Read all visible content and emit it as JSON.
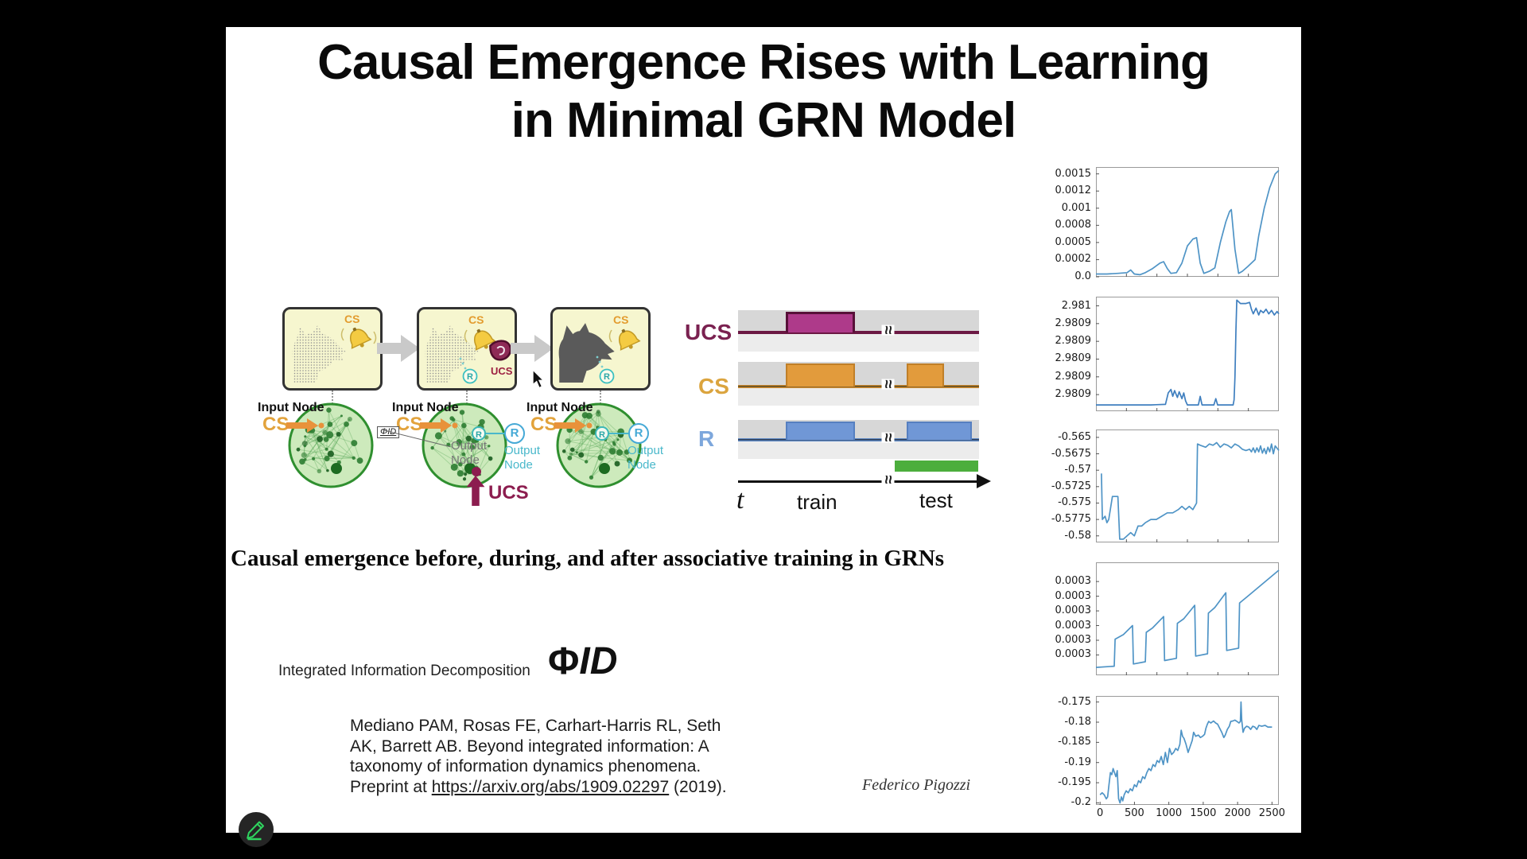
{
  "slide": {
    "title_line1": "Causal Emergence Rises with Learning",
    "title_line2": "in Minimal GRN Model",
    "caption": "Causal emergence before, during, and after associative training in GRNs",
    "author": "Federico Pigozzi"
  },
  "conditioning_panels": {
    "cs_label": "CS",
    "ucs_label": "UCS",
    "r_label": "R"
  },
  "networks": {
    "input_node_label": "Input Node",
    "cs_label": "CS",
    "output_node_line1": "Output",
    "output_node_line2": "Node",
    "ucs_label": "UCS",
    "r_label": "R",
    "phiid_badge": "ΦID"
  },
  "timing_diagram": {
    "ucs_label": "UCS",
    "cs_label": "CS",
    "r_label": "R",
    "t_label": "t",
    "train_label": "train",
    "test_label": "test",
    "break_symbol": "≈"
  },
  "phi_section": {
    "label": "Integrated Information Decomposition",
    "symbol_phi": "Φ",
    "symbol_id": "ID"
  },
  "citation": {
    "line1": "Mediano PAM, Rosas FE, Carhart-Harris RL, Seth",
    "line2": "AK, Barrett AB. Beyond integrated information: A",
    "line3": "taxonomy of information dynamics phenomena.",
    "line4_prefix": "Preprint at ",
    "line4_link": "https://arxiv.org/abs/1909.02297",
    "line4_suffix": " (2019)."
  },
  "colors": {
    "cs_orange": "#e2a33c",
    "ucs_maroon": "#8c1d4f",
    "response_blue": "#7da7dc",
    "network_green": "#2f8f2f",
    "chart_line_blue": "#4f94c6",
    "test_bar_green": "#4cae3d",
    "pencil_green": "#2fd45f"
  },
  "chart_data": [
    {
      "type": "line",
      "line_color": "#4f94c6",
      "xlim": [
        0,
        1
      ],
      "ylim": [
        0,
        0.0016
      ],
      "yticks": {
        "labels": [
          "0.0015",
          "0.0012",
          "0.001",
          "0.0008",
          "0.0005",
          "0.0002",
          "0.0"
        ],
        "values": [
          0.0015,
          0.00125,
          0.001,
          0.00075,
          0.0005,
          0.00025,
          0
        ]
      },
      "points": [
        [
          0,
          4e-05
        ],
        [
          0.06,
          4e-05
        ],
        [
          0.12,
          5e-05
        ],
        [
          0.17,
          6e-05
        ],
        [
          0.19,
          0.0001
        ],
        [
          0.21,
          4e-05
        ],
        [
          0.24,
          3e-05
        ],
        [
          0.27,
          6e-05
        ],
        [
          0.31,
          0.00012
        ],
        [
          0.35,
          0.0002
        ],
        [
          0.37,
          0.00022
        ],
        [
          0.39,
          0.00012
        ],
        [
          0.41,
          5e-05
        ],
        [
          0.44,
          6e-05
        ],
        [
          0.47,
          0.0002
        ],
        [
          0.5,
          0.00045
        ],
        [
          0.53,
          0.00055
        ],
        [
          0.55,
          0.00057
        ],
        [
          0.57,
          0.0002
        ],
        [
          0.59,
          5e-05
        ],
        [
          0.62,
          8e-05
        ],
        [
          0.65,
          0.00013
        ],
        [
          0.68,
          0.0005
        ],
        [
          0.71,
          0.0008
        ],
        [
          0.73,
          0.00095
        ],
        [
          0.74,
          0.00098
        ],
        [
          0.76,
          0.0004
        ],
        [
          0.78,
          5e-05
        ],
        [
          0.8,
          8e-05
        ],
        [
          0.83,
          0.00015
        ],
        [
          0.85,
          0.0002
        ],
        [
          0.87,
          0.00025
        ],
        [
          0.89,
          0.0006
        ],
        [
          0.92,
          0.001
        ],
        [
          0.95,
          0.0013
        ],
        [
          0.98,
          0.0015
        ],
        [
          1,
          0.00155
        ]
      ]
    },
    {
      "type": "line",
      "line_color": "#3f7fbf",
      "xlim": [
        0,
        1
      ],
      "ylim": [
        0,
        1
      ],
      "yticks": {
        "labels": [
          "2.981",
          "2.9809",
          "2.9809",
          "2.9809",
          "2.9809",
          "2.9809"
        ],
        "values": [
          0.92,
          0.765,
          0.61,
          0.455,
          0.3,
          0.145
        ]
      },
      "points": [
        [
          0,
          0.055
        ],
        [
          0.3,
          0.055
        ],
        [
          0.33,
          0.057
        ],
        [
          0.38,
          0.06
        ],
        [
          0.395,
          0.16
        ],
        [
          0.41,
          0.19
        ],
        [
          0.42,
          0.13
        ],
        [
          0.43,
          0.18
        ],
        [
          0.445,
          0.12
        ],
        [
          0.455,
          0.17
        ],
        [
          0.47,
          0.11
        ],
        [
          0.48,
          0.16
        ],
        [
          0.49,
          0.09
        ],
        [
          0.5,
          0.055
        ],
        [
          0.56,
          0.055
        ],
        [
          0.57,
          0.13
        ],
        [
          0.58,
          0.055
        ],
        [
          0.645,
          0.055
        ],
        [
          0.655,
          0.11
        ],
        [
          0.665,
          0.055
        ],
        [
          0.75,
          0.055
        ],
        [
          0.755,
          0.1
        ],
        [
          0.76,
          0.3
        ],
        [
          0.765,
          0.7
        ],
        [
          0.77,
          0.97
        ],
        [
          0.79,
          0.94
        ],
        [
          0.82,
          0.94
        ],
        [
          0.84,
          0.95
        ],
        [
          0.85,
          0.89
        ],
        [
          0.86,
          0.85
        ],
        [
          0.875,
          0.9
        ],
        [
          0.89,
          0.84
        ],
        [
          0.9,
          0.88
        ],
        [
          0.915,
          0.86
        ],
        [
          0.93,
          0.89
        ],
        [
          0.945,
          0.85
        ],
        [
          0.96,
          0.88
        ],
        [
          0.975,
          0.84
        ],
        [
          0.99,
          0.87
        ],
        [
          1,
          0.85
        ]
      ]
    },
    {
      "type": "line",
      "line_color": "#4f94c6",
      "xlim": [
        0,
        1
      ],
      "ylim": [
        -0.581,
        -0.5638
      ],
      "yticks": {
        "labels": [
          "-0.565",
          "-0.5675",
          "-0.57",
          "-0.5725",
          "-0.575",
          "-0.5775",
          "-0.58"
        ],
        "values": [
          -0.565,
          -0.5675,
          -0.57,
          -0.5725,
          -0.575,
          -0.5775,
          -0.58
        ]
      },
      "points": [
        [
          0.03,
          -0.5705
        ],
        [
          0.035,
          -0.5775
        ],
        [
          0.05,
          -0.577
        ],
        [
          0.06,
          -0.578
        ],
        [
          0.07,
          -0.5775
        ],
        [
          0.09,
          -0.574
        ],
        [
          0.12,
          -0.574
        ],
        [
          0.13,
          -0.5805
        ],
        [
          0.15,
          -0.5805
        ],
        [
          0.17,
          -0.58
        ],
        [
          0.19,
          -0.5795
        ],
        [
          0.21,
          -0.58
        ],
        [
          0.23,
          -0.5785
        ],
        [
          0.25,
          -0.5785
        ],
        [
          0.27,
          -0.578
        ],
        [
          0.3,
          -0.5775
        ],
        [
          0.33,
          -0.5775
        ],
        [
          0.36,
          -0.577
        ],
        [
          0.39,
          -0.5765
        ],
        [
          0.42,
          -0.5765
        ],
        [
          0.45,
          -0.576
        ],
        [
          0.47,
          -0.5755
        ],
        [
          0.49,
          -0.576
        ],
        [
          0.51,
          -0.5755
        ],
        [
          0.53,
          -0.576
        ],
        [
          0.54,
          -0.5755
        ],
        [
          0.55,
          -0.575
        ],
        [
          0.555,
          -0.566
        ],
        [
          0.57,
          -0.5662
        ],
        [
          0.6,
          -0.5665
        ],
        [
          0.62,
          -0.566
        ],
        [
          0.64,
          -0.5662
        ],
        [
          0.66,
          -0.5658
        ],
        [
          0.68,
          -0.5665
        ],
        [
          0.7,
          -0.566
        ],
        [
          0.72,
          -0.5662
        ],
        [
          0.74,
          -0.5666
        ],
        [
          0.76,
          -0.566
        ],
        [
          0.78,
          -0.5663
        ],
        [
          0.8,
          -0.5668
        ],
        [
          0.82,
          -0.567
        ],
        [
          0.84,
          -0.5668
        ],
        [
          0.85,
          -0.5672
        ],
        [
          0.86,
          -0.5666
        ],
        [
          0.87,
          -0.5673
        ],
        [
          0.88,
          -0.5666
        ],
        [
          0.89,
          -0.5672
        ],
        [
          0.9,
          -0.5663
        ],
        [
          0.91,
          -0.5674
        ],
        [
          0.92,
          -0.5667
        ],
        [
          0.93,
          -0.5675
        ],
        [
          0.94,
          -0.5665
        ],
        [
          0.95,
          -0.5672
        ],
        [
          0.96,
          -0.566
        ],
        [
          0.97,
          -0.5675
        ],
        [
          0.98,
          -0.5663
        ],
        [
          1,
          -0.567
        ]
      ]
    },
    {
      "type": "line",
      "line_color": "#4f94c6",
      "xlim": [
        0,
        1
      ],
      "ylim": [
        0,
        1
      ],
      "yticks": {
        "labels": [
          "0.0003",
          "0.0003",
          "0.0003",
          "0.0003",
          "0.0003",
          "0.0003"
        ],
        "values": [
          0.83,
          0.7,
          0.57,
          0.44,
          0.31,
          0.18
        ]
      },
      "points": [
        [
          0,
          0.07
        ],
        [
          0.1,
          0.08
        ],
        [
          0.105,
          0.32
        ],
        [
          0.15,
          0.36
        ],
        [
          0.2,
          0.44
        ],
        [
          0.205,
          0.1
        ],
        [
          0.27,
          0.12
        ],
        [
          0.275,
          0.38
        ],
        [
          0.31,
          0.42
        ],
        [
          0.37,
          0.52
        ],
        [
          0.375,
          0.13
        ],
        [
          0.44,
          0.15
        ],
        [
          0.445,
          0.46
        ],
        [
          0.48,
          0.5
        ],
        [
          0.54,
          0.62
        ],
        [
          0.545,
          0.17
        ],
        [
          0.61,
          0.19
        ],
        [
          0.615,
          0.55
        ],
        [
          0.65,
          0.6
        ],
        [
          0.71,
          0.73
        ],
        [
          0.715,
          0.22
        ],
        [
          0.78,
          0.24
        ],
        [
          0.785,
          0.64
        ],
        [
          0.83,
          0.7
        ],
        [
          1,
          0.93
        ]
      ]
    },
    {
      "type": "line",
      "line_color": "#4f94c6",
      "xlim": [
        -60,
        2600
      ],
      "ylim": [
        -0.2005,
        -0.1735
      ],
      "yticks": {
        "labels": [
          "-0.175",
          "-0.18",
          "-0.185",
          "-0.19",
          "-0.195",
          "-0.2"
        ],
        "values": [
          -0.175,
          -0.18,
          -0.185,
          -0.19,
          -0.195,
          -0.2
        ]
      },
      "xticks": {
        "labels": [
          "0",
          "500",
          "1000",
          "1500",
          "2000",
          "2500"
        ],
        "values": [
          0,
          500,
          1000,
          1500,
          2000,
          2500
        ]
      },
      "points": [
        [
          0,
          -0.198
        ],
        [
          30,
          -0.1975
        ],
        [
          60,
          -0.198
        ],
        [
          90,
          -0.199
        ],
        [
          110,
          -0.1985
        ],
        [
          130,
          -0.1955
        ],
        [
          150,
          -0.1925
        ],
        [
          170,
          -0.193
        ],
        [
          190,
          -0.1915
        ],
        [
          210,
          -0.1925
        ],
        [
          230,
          -0.1935
        ],
        [
          250,
          -0.192
        ],
        [
          270,
          -0.199
        ],
        [
          290,
          -0.2
        ],
        [
          310,
          -0.1985
        ],
        [
          330,
          -0.1995
        ],
        [
          350,
          -0.198
        ],
        [
          380,
          -0.197
        ],
        [
          410,
          -0.1975
        ],
        [
          440,
          -0.1965
        ],
        [
          470,
          -0.197
        ],
        [
          500,
          -0.1955
        ],
        [
          530,
          -0.196
        ],
        [
          560,
          -0.1945
        ],
        [
          590,
          -0.195
        ],
        [
          620,
          -0.1935
        ],
        [
          650,
          -0.194
        ],
        [
          680,
          -0.1925
        ],
        [
          710,
          -0.1915
        ],
        [
          740,
          -0.192
        ],
        [
          770,
          -0.1905
        ],
        [
          800,
          -0.191
        ],
        [
          830,
          -0.1895
        ],
        [
          860,
          -0.19
        ],
        [
          890,
          -0.1885
        ],
        [
          920,
          -0.1905
        ],
        [
          950,
          -0.1875
        ],
        [
          980,
          -0.19
        ],
        [
          1010,
          -0.1865
        ],
        [
          1040,
          -0.188
        ],
        [
          1070,
          -0.1875
        ],
        [
          1100,
          -0.1865
        ],
        [
          1130,
          -0.187
        ],
        [
          1160,
          -0.1855
        ],
        [
          1180,
          -0.182
        ],
        [
          1200,
          -0.1835
        ],
        [
          1220,
          -0.184
        ],
        [
          1250,
          -0.1855
        ],
        [
          1280,
          -0.1875
        ],
        [
          1310,
          -0.186
        ],
        [
          1340,
          -0.1845
        ],
        [
          1360,
          -0.1825
        ],
        [
          1390,
          -0.1835
        ],
        [
          1430,
          -0.1832
        ],
        [
          1460,
          -0.1838
        ],
        [
          1490,
          -0.1835
        ],
        [
          1520,
          -0.183
        ],
        [
          1540,
          -0.1815
        ],
        [
          1560,
          -0.1805
        ],
        [
          1580,
          -0.1798
        ],
        [
          1610,
          -0.1802
        ],
        [
          1650,
          -0.1797
        ],
        [
          1680,
          -0.1802
        ],
        [
          1710,
          -0.1805
        ],
        [
          1740,
          -0.1815
        ],
        [
          1770,
          -0.1825
        ],
        [
          1800,
          -0.1838
        ],
        [
          1820,
          -0.1832
        ],
        [
          1850,
          -0.1818
        ],
        [
          1880,
          -0.181
        ],
        [
          1900,
          -0.1798
        ],
        [
          1930,
          -0.1797
        ],
        [
          1960,
          -0.1795
        ],
        [
          1990,
          -0.1798
        ],
        [
          2020,
          -0.1802
        ],
        [
          2040,
          -0.1798
        ],
        [
          2050,
          -0.175
        ],
        [
          2060,
          -0.1795
        ],
        [
          2080,
          -0.1825
        ],
        [
          2100,
          -0.1815
        ],
        [
          2130,
          -0.181
        ],
        [
          2160,
          -0.1812
        ],
        [
          2190,
          -0.1818
        ],
        [
          2220,
          -0.181
        ],
        [
          2250,
          -0.1812
        ],
        [
          2280,
          -0.1818
        ],
        [
          2310,
          -0.1808
        ],
        [
          2350,
          -0.181
        ],
        [
          2400,
          -0.1808
        ],
        [
          2440,
          -0.1812
        ],
        [
          2500,
          -0.1812
        ]
      ]
    }
  ]
}
